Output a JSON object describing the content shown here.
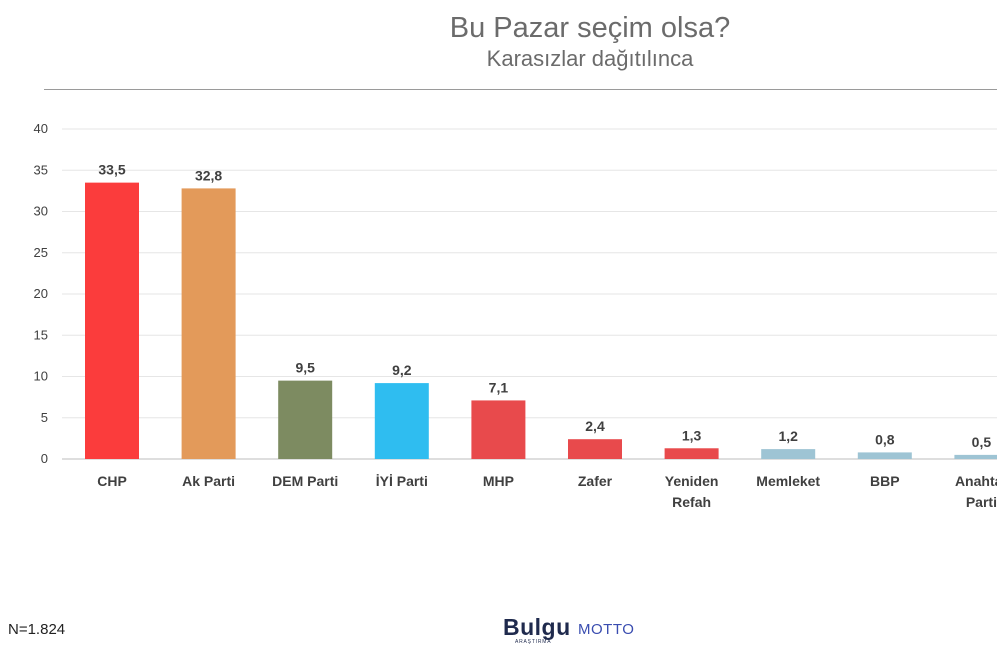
{
  "header": {
    "title": "Bu Pazar seçim olsa?",
    "subtitle": "Karasızlar dağıtılınca"
  },
  "footer": {
    "sample_size": "N=1.824",
    "logo_bulgu": "Bulgu",
    "logo_bulgu_sub": "ARAŞTIRMA",
    "logo_motto": "MOTTO"
  },
  "colors": {
    "CHP": "#fb3c3c",
    "Ak Parti": "#e39a5a",
    "DEM Parti": "#7d8b61",
    "İYİ Parti": "#2fbdf0",
    "MHP": "#e84a4c",
    "Zafer": "#e84a4c",
    "Yeniden Refah": "#e84a4c",
    "Memleket": "#9ec4d4",
    "BBP": "#9ec4d4",
    "Anahtar Parti": "#9ec4d4",
    "grid": "#e6e6e6",
    "label": "#404040"
  },
  "chart_data": {
    "type": "bar",
    "title": "Bu Pazar seçim olsa?",
    "subtitle": "Karasızlar dağıtılınca",
    "categories": [
      "CHP",
      "Ak Parti",
      "DEM Parti",
      "İYİ Parti",
      "MHP",
      "Zafer",
      "Yeniden Refah",
      "Memleket",
      "BBP",
      "Anahtar Parti"
    ],
    "category_label_lines": [
      [
        "CHP"
      ],
      [
        "Ak Parti"
      ],
      [
        "DEM Parti"
      ],
      [
        "İYİ Parti"
      ],
      [
        "MHP"
      ],
      [
        "Zafer"
      ],
      [
        "Yeniden",
        "Refah"
      ],
      [
        "Memleket"
      ],
      [
        "BBP"
      ],
      [
        "Anahtar",
        "Parti"
      ]
    ],
    "values": [
      33.5,
      32.8,
      9.5,
      9.2,
      7.1,
      2.4,
      1.3,
      1.2,
      0.8,
      0.5
    ],
    "value_labels": [
      "33,5",
      "32,8",
      "9,5",
      "9,2",
      "7,1",
      "2,4",
      "1,3",
      "1,2",
      "0,8",
      "0,5"
    ],
    "yticks": [
      "0",
      "5",
      "10",
      "15",
      "20",
      "25",
      "30",
      "35",
      "40"
    ],
    "ylim": [
      0,
      40
    ],
    "xlabel": "",
    "ylabel": "",
    "grid": true,
    "legend": "none"
  }
}
